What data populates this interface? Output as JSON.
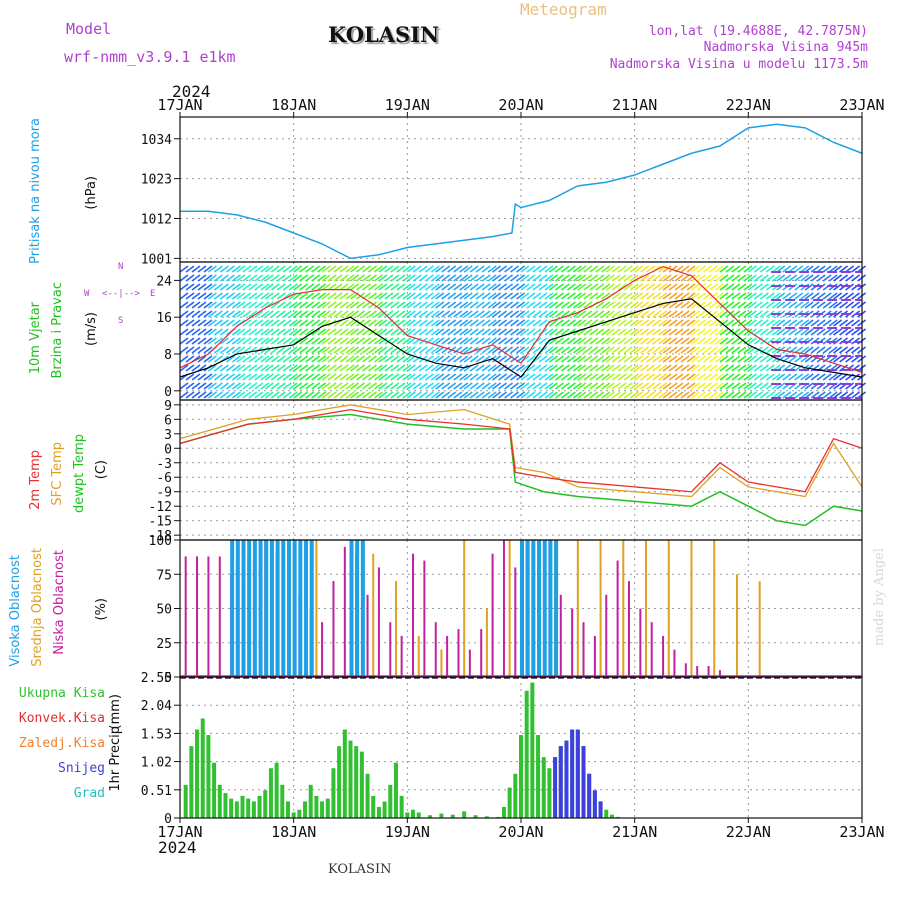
{
  "header": {
    "model_label": "Model",
    "model_name": "wrf-nmm_v3.9.1  e1km",
    "city": "KOLASIN",
    "meteogram": "Meteogram",
    "lonlat": "lon,lat (19.4688E, 42.7875N)",
    "elev": "Nadmorska Visina 945m",
    "elev_model": "Nadmorska Visina u modelu 1173.5m",
    "year_top": "2024",
    "year_bottom": "2024",
    "footer": "KOLASIN",
    "credit": "made by Angel"
  },
  "colors": {
    "pressure": "#1ea0e6",
    "wind_speed": "#000000",
    "gust": "#e03030",
    "t2m": "#e83030",
    "tsfc": "#e0a020",
    "dewpoint": "#20c020",
    "high": "#1ea0e6",
    "mid": "#e0a020",
    "low": "#c020a0",
    "precip": "#30c030",
    "conv": "#e03030",
    "freezing": "#f08030",
    "snow": "#4040e0",
    "grad": "#20c0c0"
  },
  "chart_data": [
    {
      "type": "line",
      "panel": "pressure",
      "ylabel": [
        "Pritisak na nivou mora",
        "(hPa)"
      ],
      "x_ticks": [
        "17JAN",
        "18JAN",
        "19JAN",
        "20JAN",
        "21JAN",
        "22JAN",
        "23JAN"
      ],
      "yticks": [
        1001,
        1012,
        1023,
        1034
      ],
      "ylim": [
        1000,
        1040
      ],
      "series": [
        {
          "x": [
            0,
            0.25,
            0.5,
            0.75,
            1.0,
            1.25,
            1.5,
            1.75,
            2.0,
            2.25,
            2.5,
            2.75,
            2.92,
            2.95,
            3.0,
            3.25,
            3.5,
            3.75,
            4.0,
            4.25,
            4.5,
            4.75,
            5.0,
            5.25,
            5.5,
            5.75,
            6.0
          ],
          "y": [
            1014,
            1014,
            1013,
            1011,
            1008,
            1005,
            1001,
            1002,
            1004,
            1005,
            1006,
            1007,
            1008,
            1016,
            1015,
            1017,
            1021,
            1022,
            1024,
            1027,
            1030,
            1032,
            1037,
            1038,
            1037,
            1033,
            1030
          ]
        }
      ]
    },
    {
      "type": "line",
      "panel": "wind",
      "ylabel": [
        "10m Vjetar",
        "Brzina i Pravac",
        "(m/s)"
      ],
      "direction_legend": [
        "W",
        "<--|-->",
        "E",
        "N",
        "S"
      ],
      "yticks": [
        0,
        8,
        16,
        24
      ],
      "ylim": [
        -2,
        28
      ],
      "series": [
        {
          "name": "speed",
          "x": [
            0,
            0.25,
            0.5,
            0.75,
            1.0,
            1.25,
            1.5,
            1.75,
            2.0,
            2.25,
            2.5,
            2.75,
            3.0,
            3.25,
            3.5,
            3.75,
            4.0,
            4.25,
            4.5,
            4.75,
            5.0,
            5.25,
            5.5,
            5.75,
            6.0
          ],
          "y": [
            3,
            5,
            8,
            9,
            10,
            14,
            16,
            12,
            8,
            6,
            5,
            7,
            3,
            11,
            13,
            15,
            17,
            19,
            20,
            15,
            10,
            7,
            5,
            4,
            3
          ]
        },
        {
          "name": "gust",
          "x": [
            0,
            0.25,
            0.5,
            0.75,
            1.0,
            1.25,
            1.5,
            1.75,
            2.0,
            2.25,
            2.5,
            2.75,
            3.0,
            3.25,
            3.5,
            3.75,
            4.0,
            4.25,
            4.5,
            4.75,
            5.0,
            5.25,
            5.5,
            5.75,
            6.0
          ],
          "y": [
            5,
            8,
            14,
            18,
            21,
            22,
            22,
            18,
            12,
            10,
            8,
            10,
            6,
            15,
            17,
            20,
            24,
            27,
            25,
            19,
            13,
            9,
            8,
            6,
            4
          ]
        }
      ]
    },
    {
      "type": "line",
      "panel": "temperature",
      "ylabel": [
        "2m Temp",
        "SFC Temp",
        "dewpt Temp",
        "(C)"
      ],
      "yticks": [
        9,
        6,
        3,
        0,
        -3,
        -6,
        -9,
        -12,
        -15,
        -18
      ],
      "ylim": [
        -19,
        10
      ],
      "series": [
        {
          "name": "2m Temp",
          "x": [
            0,
            0.3,
            0.6,
            1.0,
            1.5,
            2.0,
            2.5,
            2.9,
            2.95,
            3.2,
            3.5,
            4.0,
            4.5,
            4.75,
            5.0,
            5.25,
            5.5,
            5.75,
            6.0
          ],
          "y": [
            1,
            3,
            5,
            6,
            8,
            6,
            5,
            4,
            -5,
            -6,
            -7,
            -8,
            -9,
            -3,
            -7,
            -8,
            -9,
            2,
            0
          ]
        },
        {
          "name": "SFC Temp",
          "x": [
            0,
            0.3,
            0.6,
            1.0,
            1.5,
            2.0,
            2.5,
            2.9,
            2.95,
            3.2,
            3.5,
            4.0,
            4.5,
            4.75,
            5.0,
            5.25,
            5.5,
            5.75,
            6.0
          ],
          "y": [
            2,
            4,
            6,
            7,
            9,
            7,
            8,
            5,
            -4,
            -5,
            -8,
            -9,
            -10,
            -4,
            -8,
            -9,
            -10,
            1,
            -8
          ]
        },
        {
          "name": "dewpt Temp",
          "x": [
            0,
            0.3,
            0.6,
            1.0,
            1.5,
            2.0,
            2.5,
            2.9,
            2.95,
            3.2,
            3.5,
            4.0,
            4.5,
            4.75,
            5.0,
            5.25,
            5.5,
            5.75,
            6.0
          ],
          "y": [
            1,
            3,
            5,
            6,
            7,
            5,
            4,
            4,
            -7,
            -9,
            -10,
            -11,
            -12,
            -9,
            -12,
            -15,
            -16,
            -12,
            -13
          ]
        }
      ]
    },
    {
      "type": "bar",
      "panel": "cloud",
      "ylabel": [
        "Visoka Oblacnost",
        "Srednja Oblacnost",
        "Niska Oblacnost",
        "(%)"
      ],
      "yticks": [
        0,
        25,
        50,
        75,
        100
      ],
      "ylim": [
        0,
        100
      ],
      "series": [
        {
          "name": "Niska Oblacnost",
          "x": [
            0.05,
            0.15,
            0.25,
            0.35,
            0.45,
            0.55,
            0.65,
            0.75,
            0.85,
            0.95,
            1.05,
            1.15,
            1.25,
            1.35,
            1.45,
            1.55,
            1.65,
            1.75,
            1.85,
            1.95,
            2.05,
            2.15,
            2.25,
            2.35,
            2.45,
            2.55,
            2.65,
            2.75,
            2.85,
            2.95,
            3.05,
            3.15,
            3.25,
            3.35,
            3.45,
            3.55,
            3.65,
            3.75,
            3.85,
            3.95,
            4.05,
            4.15,
            4.25,
            4.35,
            4.45,
            4.55,
            4.65,
            4.75,
            4.85,
            4.95,
            5.05
          ],
          "y": [
            88,
            88,
            88,
            88,
            75,
            70,
            85,
            100,
            90,
            80,
            60,
            50,
            40,
            70,
            95,
            90,
            60,
            80,
            40,
            30,
            90,
            85,
            40,
            30,
            35,
            20,
            35,
            90,
            100,
            80,
            100,
            95,
            100,
            60,
            50,
            40,
            30,
            60,
            85,
            70,
            50,
            40,
            30,
            20,
            10,
            8,
            8,
            5,
            0,
            0,
            0
          ]
        },
        {
          "name": "Srednja Oblacnost",
          "x": [
            0.5,
            0.6,
            0.8,
            1.0,
            1.2,
            1.5,
            1.7,
            1.9,
            2.1,
            2.3,
            2.5,
            2.7,
            2.9,
            3.1,
            3.3,
            3.5,
            3.7,
            3.9,
            4.1,
            4.3,
            4.5,
            4.7,
            4.9,
            5.1
          ],
          "y": [
            85,
            88,
            100,
            95,
            100,
            60,
            90,
            70,
            30,
            20,
            100,
            50,
            100,
            100,
            100,
            100,
            100,
            100,
            100,
            100,
            100,
            100,
            75,
            70
          ]
        },
        {
          "name": "Visoka Oblacnost",
          "x": [
            0.45,
            0.5,
            0.55,
            0.6,
            0.65,
            0.7,
            0.75,
            0.8,
            0.85,
            0.9,
            0.95,
            1.0,
            1.05,
            1.1,
            1.15,
            1.5,
            1.55,
            1.6,
            3.0,
            3.05,
            3.1,
            3.15,
            3.2,
            3.25,
            3.3
          ],
          "y": [
            100,
            100,
            100,
            100,
            100,
            100,
            100,
            100,
            100,
            100,
            100,
            100,
            100,
            100,
            100,
            100,
            100,
            100,
            100,
            100,
            100,
            100,
            100,
            100,
            100
          ]
        }
      ]
    },
    {
      "type": "bar",
      "panel": "precip",
      "ylabel": [
        "1hr Precip",
        "(mm)"
      ],
      "legend": [
        "Ukupna Kisa",
        "Konvek.Kisa",
        "Zaledj.Kisa",
        "Snijeg",
        "Grad"
      ],
      "yticks": [
        0,
        0.51,
        1.02,
        1.53,
        2.04,
        2.55
      ],
      "ylim": [
        0,
        2.55
      ],
      "series": [
        {
          "name": "Ukupna Kisa",
          "x": [
            0.05,
            0.1,
            0.15,
            0.2,
            0.25,
            0.3,
            0.35,
            0.4,
            0.45,
            0.5,
            0.55,
            0.6,
            0.65,
            0.7,
            0.75,
            0.8,
            0.85,
            0.9,
            0.95,
            1.0,
            1.05,
            1.1,
            1.15,
            1.2,
            1.25,
            1.3,
            1.35,
            1.4,
            1.45,
            1.5,
            1.55,
            1.6,
            1.65,
            1.7,
            1.75,
            1.8,
            1.85,
            1.9,
            1.95,
            2.0,
            2.05,
            2.1,
            2.2,
            2.3,
            2.4,
            2.5,
            2.6,
            2.7,
            2.8,
            2.85,
            2.9,
            2.95,
            3.0,
            3.05,
            3.1,
            3.15,
            3.2,
            3.25,
            3.3,
            3.35,
            3.4,
            3.45,
            3.5,
            3.55,
            3.6,
            3.65,
            3.7,
            3.75,
            3.8,
            3.85
          ],
          "y": [
            0.6,
            1.3,
            1.6,
            1.8,
            1.5,
            1.0,
            0.6,
            0.45,
            0.35,
            0.3,
            0.4,
            0.35,
            0.3,
            0.4,
            0.5,
            0.9,
            1.0,
            0.6,
            0.3,
            0.1,
            0.15,
            0.3,
            0.6,
            0.4,
            0.3,
            0.35,
            0.9,
            1.3,
            1.6,
            1.4,
            1.3,
            1.2,
            0.8,
            0.4,
            0.2,
            0.3,
            0.6,
            1.0,
            0.4,
            0.1,
            0.15,
            0.1,
            0.05,
            0.08,
            0.06,
            0.12,
            0.05,
            0.03,
            0.02,
            0.2,
            0.55,
            0.8,
            1.5,
            2.3,
            2.45,
            1.5,
            1.1,
            0.9,
            1.1,
            1.3,
            1.4,
            1.6,
            1.6,
            1.3,
            0.8,
            0.5,
            0.3,
            0.15,
            0.06,
            0.02
          ]
        },
        {
          "name": "Snijeg",
          "x": [
            3.3,
            3.35,
            3.4,
            3.45,
            3.5,
            3.55,
            3.6,
            3.65,
            3.7
          ],
          "y": [
            1.1,
            1.3,
            1.4,
            1.6,
            1.6,
            1.3,
            0.8,
            0.5,
            0.3
          ]
        }
      ]
    }
  ]
}
